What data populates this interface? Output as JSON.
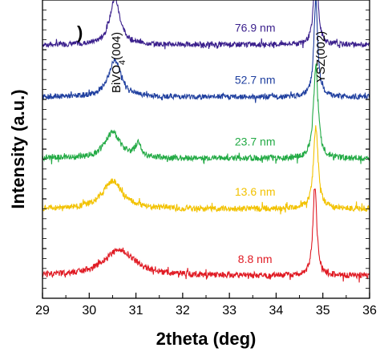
{
  "chart_data": {
    "type": "line",
    "title": "",
    "xlabel": "2theta (deg)",
    "ylabel": "Intensity (a.u.)",
    "xlim": [
      29,
      36
    ],
    "ylim": [
      0,
      8
    ],
    "x_ticks": [
      "29",
      "30",
      "31",
      "32",
      "33",
      "34",
      "35",
      "36"
    ],
    "y_ticks_shown": false,
    "grid": false,
    "legend": "inline labels",
    "panel_mark": ")",
    "annotations": [
      {
        "text_main": "BiVO",
        "text_sub": "4",
        "text_tail": "(004)",
        "x": 30.55
      },
      {
        "text_main": "YSZ(002)",
        "text_sub": "",
        "text_tail": "",
        "x": 34.85
      }
    ],
    "series": [
      {
        "name": "76.9 nm",
        "color": "#3a1f8c",
        "baseline": 6.8,
        "peaks": [
          {
            "x": 30.55,
            "h": 1.25,
            "w": 0.13
          },
          {
            "x": 34.85,
            "h": 2.35,
            "w": 0.05
          }
        ],
        "broad": 0.08,
        "noise": 0.07,
        "label_x": 33.55
      },
      {
        "name": "52.7 nm",
        "color": "#1f3f9f",
        "baseline": 5.4,
        "peaks": [
          {
            "x": 30.55,
            "h": 1.0,
            "w": 0.16
          },
          {
            "x": 34.85,
            "h": 2.6,
            "w": 0.05
          }
        ],
        "broad": 0.1,
        "noise": 0.07,
        "label_x": 33.55
      },
      {
        "name": "23.7 nm",
        "color": "#22aa44",
        "baseline": 3.75,
        "peaks": [
          {
            "x": 30.5,
            "h": 0.7,
            "w": 0.2
          },
          {
            "x": 31.05,
            "h": 0.35,
            "w": 0.08
          },
          {
            "x": 34.85,
            "h": 2.5,
            "w": 0.06
          }
        ],
        "broad": 0.1,
        "noise": 0.08,
        "label_x": 33.55
      },
      {
        "name": "13.6 nm",
        "color": "#f2c200",
        "baseline": 2.4,
        "peaks": [
          {
            "x": 30.5,
            "h": 0.75,
            "w": 0.25
          },
          {
            "x": 34.85,
            "h": 2.2,
            "w": 0.06
          }
        ],
        "broad": 0.1,
        "noise": 0.08,
        "label_x": 33.55
      },
      {
        "name": "8.8 nm",
        "color": "#e01b24",
        "baseline": 0.6,
        "peaks": [
          {
            "x": 30.65,
            "h": 0.7,
            "w": 0.4
          },
          {
            "x": 34.83,
            "h": 2.4,
            "w": 0.05
          }
        ],
        "broad": 0.1,
        "noise": 0.08,
        "label_x": 33.55
      }
    ]
  }
}
